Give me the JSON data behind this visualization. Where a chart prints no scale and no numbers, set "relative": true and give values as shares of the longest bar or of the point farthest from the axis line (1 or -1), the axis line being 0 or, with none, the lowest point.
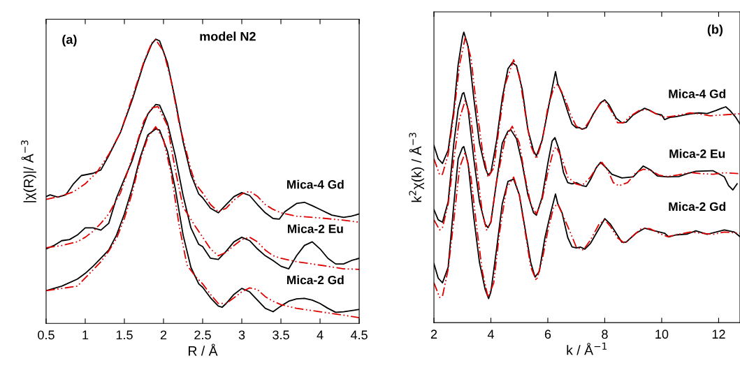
{
  "chart_data": [
    {
      "type": "line",
      "title": "(a)",
      "subtitle": "model N2",
      "xlabel": "R / Å",
      "ylabel": "|χ(R)|/ Å$^{−3}$",
      "relative": true,
      "xlim": [
        0.5,
        4.5
      ],
      "xticks": [
        0.5,
        1,
        1.5,
        2,
        2.5,
        3,
        3.5,
        4,
        4.5
      ],
      "annotations": [
        "Mica-4 Gd",
        "Mica-2 Eu",
        "Mica-2 Gd"
      ],
      "series": [
        {
          "color": "#000000",
          "line_style": "solid",
          "x": [
            0.5,
            0.55,
            0.65,
            0.75,
            0.85,
            0.95,
            1.1,
            1.2,
            1.3,
            1.45,
            1.6,
            1.75,
            1.85,
            1.9,
            1.95,
            2.05,
            2.15,
            2.25,
            2.35,
            2.45,
            2.5,
            2.6,
            2.7,
            2.8,
            2.9,
            3.0,
            3.1,
            3.2,
            3.3,
            3.4,
            3.48,
            3.55,
            3.7,
            3.8,
            3.9,
            4.0,
            4.15,
            4.3,
            4.4,
            4.5
          ],
          "values": [
            0.446,
            0.452,
            0.444,
            0.452,
            0.491,
            0.52,
            0.528,
            0.54,
            0.59,
            0.672,
            0.786,
            0.917,
            0.983,
            1.0,
            0.994,
            0.917,
            0.786,
            0.639,
            0.524,
            0.455,
            0.442,
            0.405,
            0.389,
            0.418,
            0.446,
            0.46,
            0.45,
            0.418,
            0.389,
            0.369,
            0.367,
            0.393,
            0.422,
            0.426,
            0.414,
            0.401,
            0.381,
            0.373,
            0.377,
            0.385
          ]
        },
        {
          "color": "#e00000",
          "line_style": "dashed",
          "x": [
            0.5,
            0.7,
            0.85,
            1.0,
            1.15,
            1.3,
            1.45,
            1.6,
            1.75,
            1.85,
            1.9,
            2.0,
            2.1,
            2.2,
            2.35,
            2.41,
            2.5,
            2.6,
            2.7,
            2.8,
            2.9,
            3.0,
            3.1,
            3.2,
            3.3,
            3.4,
            3.5,
            3.7,
            4.0,
            4.3,
            4.5
          ],
          "values": [
            0.436,
            0.449,
            0.463,
            0.491,
            0.532,
            0.594,
            0.672,
            0.794,
            0.921,
            0.987,
            0.998,
            0.958,
            0.851,
            0.704,
            0.541,
            0.491,
            0.459,
            0.418,
            0.393,
            0.405,
            0.434,
            0.455,
            0.465,
            0.447,
            0.418,
            0.401,
            0.389,
            0.377,
            0.371,
            0.363,
            0.356
          ]
        },
        {
          "color": "#000000",
          "line_style": "solid",
          "x": [
            0.5,
            0.6,
            0.7,
            0.8,
            0.9,
            1.0,
            1.1,
            1.2,
            1.3,
            1.4,
            1.5,
            1.6,
            1.7,
            1.8,
            1.9,
            1.95,
            2.05,
            2.15,
            2.25,
            2.35,
            2.45,
            2.5,
            2.6,
            2.7,
            2.8,
            2.9,
            3.0,
            3.1,
            3.2,
            3.3,
            3.4,
            3.5,
            3.6,
            3.7,
            3.8,
            3.9,
            4.0,
            4.1,
            4.2,
            4.3,
            4.4,
            4.5
          ],
          "values": [
            0.262,
            0.274,
            0.291,
            0.295,
            0.311,
            0.336,
            0.336,
            0.328,
            0.352,
            0.442,
            0.508,
            0.573,
            0.663,
            0.737,
            0.77,
            0.768,
            0.705,
            0.59,
            0.45,
            0.336,
            0.278,
            0.27,
            0.229,
            0.225,
            0.254,
            0.287,
            0.303,
            0.291,
            0.262,
            0.238,
            0.221,
            0.201,
            0.192,
            0.238,
            0.274,
            0.287,
            0.262,
            0.229,
            0.209,
            0.209,
            0.221,
            0.229
          ]
        },
        {
          "color": "#e00000",
          "line_style": "dashed",
          "x": [
            0.5,
            0.7,
            0.9,
            1.0,
            1.1,
            1.2,
            1.3,
            1.45,
            1.6,
            1.75,
            1.85,
            1.93,
            2.05,
            2.15,
            2.25,
            2.4,
            2.5,
            2.6,
            2.7,
            2.8,
            2.9,
            3.0,
            3.1,
            3.2,
            3.3,
            3.4,
            3.5,
            3.7,
            4.0,
            4.3,
            4.5
          ],
          "values": [
            0.266,
            0.274,
            0.287,
            0.303,
            0.324,
            0.352,
            0.385,
            0.459,
            0.582,
            0.712,
            0.758,
            0.763,
            0.696,
            0.541,
            0.41,
            0.344,
            0.303,
            0.262,
            0.238,
            0.25,
            0.274,
            0.295,
            0.303,
            0.287,
            0.258,
            0.238,
            0.229,
            0.217,
            0.205,
            0.192,
            0.19
          ]
        },
        {
          "color": "#000000",
          "line_style": "solid",
          "x": [
            0.5,
            0.7,
            0.9,
            1.0,
            1.1,
            1.2,
            1.3,
            1.4,
            1.5,
            1.6,
            1.7,
            1.8,
            1.9,
            1.95,
            2.05,
            2.15,
            2.25,
            2.35,
            2.45,
            2.5,
            2.6,
            2.7,
            2.75,
            2.8,
            2.9,
            3.0,
            3.1,
            3.2,
            3.3,
            3.4,
            3.5,
            3.6,
            3.7,
            3.8,
            3.9,
            4.0,
            4.1,
            4.2,
            4.3,
            4.5
          ],
          "values": [
            0.115,
            0.131,
            0.156,
            0.176,
            0.201,
            0.229,
            0.258,
            0.311,
            0.385,
            0.475,
            0.582,
            0.663,
            0.684,
            0.68,
            0.606,
            0.475,
            0.311,
            0.197,
            0.139,
            0.127,
            0.09,
            0.061,
            0.057,
            0.07,
            0.102,
            0.123,
            0.111,
            0.082,
            0.053,
            0.041,
            0.061,
            0.078,
            0.086,
            0.088,
            0.082,
            0.07,
            0.053,
            0.039,
            0.041,
            0.049
          ]
        },
        {
          "color": "#e00000",
          "line_style": "dashed",
          "x": [
            0.5,
            0.7,
            0.9,
            1.0,
            1.1,
            1.2,
            1.3,
            1.4,
            1.5,
            1.6,
            1.7,
            1.8,
            1.9,
            2.0,
            2.1,
            2.2,
            2.3,
            2.4,
            2.5,
            2.6,
            2.7,
            2.8,
            2.9,
            3.0,
            3.1,
            3.2,
            3.3,
            3.4,
            3.5,
            3.7,
            4.0,
            4.3,
            4.5
          ],
          "values": [
            0.115,
            0.123,
            0.131,
            0.16,
            0.188,
            0.217,
            0.254,
            0.299,
            0.369,
            0.459,
            0.573,
            0.655,
            0.692,
            0.647,
            0.524,
            0.344,
            0.205,
            0.168,
            0.139,
            0.102,
            0.07,
            0.07,
            0.09,
            0.111,
            0.125,
            0.119,
            0.094,
            0.078,
            0.066,
            0.053,
            0.041,
            0.029,
            0.02
          ]
        }
      ]
    },
    {
      "type": "line",
      "title": "(b)",
      "xlabel": "k / Å$^{−1}$",
      "ylabel": "k$^{2}$χ(k) / Å$^{−3}$",
      "relative": true,
      "xlim": [
        2,
        12.75
      ],
      "xticks": [
        2,
        4,
        6,
        8,
        10,
        12
      ],
      "annotations": [
        "Mica-4 Gd",
        "Mica-2 Eu",
        "Mica-2 Gd"
      ],
      "series": [
        {
          "color": "#000000",
          "line_style": "solid",
          "x": [
            2.0,
            2.15,
            2.3,
            2.5,
            2.7,
            2.85,
            3.0,
            3.05,
            3.2,
            3.4,
            3.6,
            3.8,
            3.9,
            4.0,
            4.2,
            4.4,
            4.6,
            4.75,
            4.9,
            5.1,
            5.3,
            5.5,
            5.6,
            5.8,
            6.0,
            6.15,
            6.27,
            6.35,
            6.5,
            6.7,
            6.85,
            7.0,
            7.1,
            7.2,
            7.35,
            7.6,
            7.85,
            8.0,
            8.15,
            8.4,
            8.6,
            8.75,
            9.0,
            9.2,
            9.4,
            9.6,
            9.8,
            10.0,
            10.1,
            10.3,
            10.5,
            10.8,
            11.0,
            11.3,
            11.6,
            11.9,
            12.1,
            12.25,
            12.4,
            12.6,
            12.75
          ],
          "values": [
            0.61,
            0.564,
            0.548,
            0.594,
            0.734,
            0.888,
            0.982,
            1.0,
            0.951,
            0.773,
            0.618,
            0.533,
            0.509,
            0.517,
            0.626,
            0.773,
            0.874,
            0.895,
            0.885,
            0.804,
            0.664,
            0.591,
            0.574,
            0.628,
            0.729,
            0.806,
            0.864,
            0.822,
            0.788,
            0.726,
            0.684,
            0.671,
            0.672,
            0.666,
            0.671,
            0.719,
            0.757,
            0.767,
            0.75,
            0.704,
            0.688,
            0.69,
            0.715,
            0.727,
            0.738,
            0.73,
            0.719,
            0.715,
            0.699,
            0.707,
            0.709,
            0.715,
            0.719,
            0.722,
            0.72,
            0.73,
            0.738,
            0.743,
            0.73,
            0.707,
            0.684
          ]
        },
        {
          "color": "#e00000",
          "line_style": "dashed",
          "x": [
            2.0,
            2.2,
            2.3,
            2.5,
            2.7,
            2.9,
            3.1,
            3.3,
            3.5,
            3.7,
            3.9,
            4.1,
            4.3,
            4.5,
            4.8,
            5.0,
            5.2,
            5.4,
            5.6,
            5.8,
            6.0,
            6.2,
            6.35,
            6.6,
            6.8,
            7.0,
            7.25,
            7.5,
            7.8,
            8.0,
            8.2,
            8.45,
            8.65,
            8.9,
            9.2,
            9.5,
            9.8,
            10.1,
            10.5,
            11.0,
            11.3,
            11.7,
            12.1,
            12.75
          ],
          "values": [
            0.564,
            0.509,
            0.511,
            0.579,
            0.719,
            0.888,
            0.982,
            0.912,
            0.74,
            0.595,
            0.5,
            0.533,
            0.68,
            0.819,
            0.905,
            0.85,
            0.726,
            0.609,
            0.564,
            0.625,
            0.74,
            0.806,
            0.822,
            0.771,
            0.716,
            0.676,
            0.664,
            0.7,
            0.75,
            0.765,
            0.734,
            0.688,
            0.688,
            0.711,
            0.73,
            0.734,
            0.719,
            0.707,
            0.712,
            0.722,
            0.719,
            0.712,
            0.715,
            0.719
          ]
        },
        {
          "color": "#000000",
          "line_style": "solid",
          "x": [
            2.0,
            2.15,
            2.3,
            2.5,
            2.7,
            2.85,
            3.0,
            3.05,
            3.2,
            3.4,
            3.6,
            3.8,
            3.9,
            4.0,
            4.2,
            4.4,
            4.6,
            4.7,
            4.9,
            5.1,
            5.3,
            5.5,
            5.6,
            5.8,
            6.0,
            6.15,
            6.25,
            6.4,
            6.55,
            6.7,
            6.85,
            7.0,
            7.2,
            7.35,
            7.5,
            7.7,
            7.85,
            8.05,
            8.25,
            8.6,
            9.0,
            9.35,
            9.6,
            9.85,
            10.2,
            10.6,
            10.9,
            11.2,
            11.8,
            12.2,
            12.35,
            12.5,
            12.65
          ],
          "values": [
            0.389,
            0.354,
            0.346,
            0.416,
            0.618,
            0.734,
            0.788,
            0.792,
            0.734,
            0.564,
            0.416,
            0.339,
            0.327,
            0.346,
            0.486,
            0.618,
            0.659,
            0.664,
            0.633,
            0.548,
            0.44,
            0.378,
            0.37,
            0.432,
            0.548,
            0.625,
            0.637,
            0.594,
            0.517,
            0.482,
            0.478,
            0.482,
            0.472,
            0.469,
            0.493,
            0.533,
            0.552,
            0.533,
            0.511,
            0.498,
            0.502,
            0.539,
            0.526,
            0.505,
            0.502,
            0.503,
            0.513,
            0.521,
            0.523,
            0.502,
            0.472,
            0.457,
            0.478
          ]
        },
        {
          "color": "#e00000",
          "line_style": "dashed",
          "x": [
            2.0,
            2.2,
            2.3,
            2.5,
            2.7,
            2.9,
            3.1,
            3.3,
            3.5,
            3.7,
            3.85,
            4.0,
            4.2,
            4.5,
            4.75,
            5.0,
            5.2,
            5.4,
            5.6,
            5.8,
            6.0,
            6.2,
            6.3,
            6.5,
            6.7,
            7.0,
            7.2,
            7.5,
            7.75,
            7.9,
            8.1,
            8.3,
            8.5,
            8.8,
            9.1,
            9.35,
            9.6,
            9.9,
            10.2,
            10.6,
            11.0,
            11.4,
            11.8,
            12.2,
            12.75
          ],
          "values": [
            0.354,
            0.319,
            0.327,
            0.408,
            0.564,
            0.703,
            0.765,
            0.703,
            0.533,
            0.378,
            0.319,
            0.346,
            0.486,
            0.633,
            0.676,
            0.618,
            0.501,
            0.408,
            0.374,
            0.424,
            0.517,
            0.594,
            0.605,
            0.564,
            0.501,
            0.477,
            0.472,
            0.501,
            0.54,
            0.552,
            0.525,
            0.482,
            0.471,
            0.482,
            0.517,
            0.528,
            0.525,
            0.508,
            0.503,
            0.509,
            0.517,
            0.513,
            0.511,
            0.516,
            0.513
          ]
        },
        {
          "color": "#000000",
          "line_style": "solid",
          "x": [
            2.0,
            2.15,
            2.3,
            2.5,
            2.7,
            2.85,
            3.0,
            3.05,
            3.2,
            3.4,
            3.6,
            3.8,
            3.92,
            4.0,
            4.2,
            4.4,
            4.6,
            4.8,
            5.0,
            5.2,
            5.4,
            5.55,
            5.7,
            5.9,
            6.1,
            6.27,
            6.35,
            6.5,
            6.7,
            6.85,
            7.0,
            7.15,
            7.3,
            7.5,
            7.75,
            8.0,
            8.2,
            8.4,
            8.6,
            8.75,
            9.1,
            9.4,
            9.75,
            10.1,
            10.25,
            10.5,
            10.9,
            11.2,
            11.6,
            12.2,
            12.55,
            12.75
          ],
          "values": [
            0.203,
            0.153,
            0.137,
            0.191,
            0.409,
            0.564,
            0.602,
            0.606,
            0.548,
            0.362,
            0.207,
            0.114,
            0.083,
            0.106,
            0.253,
            0.409,
            0.486,
            0.494,
            0.44,
            0.324,
            0.207,
            0.157,
            0.176,
            0.293,
            0.378,
            0.443,
            0.409,
            0.378,
            0.293,
            0.261,
            0.257,
            0.26,
            0.253,
            0.273,
            0.316,
            0.358,
            0.339,
            0.308,
            0.277,
            0.277,
            0.308,
            0.325,
            0.316,
            0.308,
            0.295,
            0.302,
            0.305,
            0.316,
            0.304,
            0.319,
            0.312,
            0.296
          ]
        },
        {
          "color": "#e00000",
          "line_style": "dashed",
          "x": [
            2.0,
            2.2,
            2.3,
            2.5,
            2.7,
            2.9,
            3.1,
            3.3,
            3.5,
            3.7,
            3.9,
            4.1,
            4.3,
            4.55,
            4.8,
            5.0,
            5.2,
            5.4,
            5.6,
            5.8,
            6.0,
            6.2,
            6.35,
            6.6,
            6.8,
            7.0,
            7.25,
            7.5,
            7.8,
            8.0,
            8.2,
            8.45,
            8.7,
            9.0,
            9.3,
            9.6,
            9.9,
            10.2,
            10.6,
            11.0,
            11.4,
            11.8,
            12.2,
            12.75
          ],
          "values": [
            0.137,
            0.087,
            0.091,
            0.184,
            0.354,
            0.533,
            0.587,
            0.501,
            0.33,
            0.176,
            0.087,
            0.137,
            0.308,
            0.463,
            0.501,
            0.44,
            0.316,
            0.191,
            0.145,
            0.215,
            0.316,
            0.397,
            0.409,
            0.354,
            0.308,
            0.26,
            0.25,
            0.285,
            0.339,
            0.354,
            0.331,
            0.292,
            0.273,
            0.3,
            0.325,
            0.323,
            0.308,
            0.296,
            0.304,
            0.312,
            0.308,
            0.304,
            0.312,
            0.308
          ]
        }
      ]
    }
  ]
}
